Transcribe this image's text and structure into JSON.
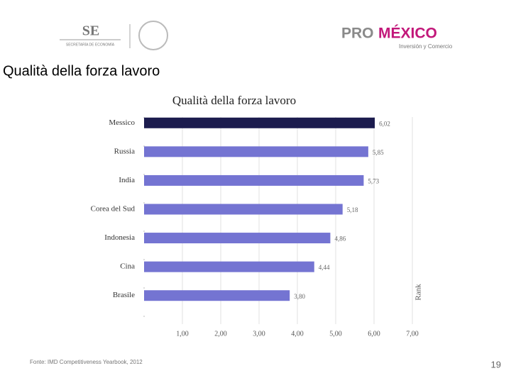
{
  "header": {
    "se_logo": "SE",
    "se_subtitle": "SECRETARÍA DE ECONOMÍA",
    "promexico_pro": "PRO",
    "promexico_mexico": "MÉXICO",
    "promexico_subtitle": "Inversión y Comercio"
  },
  "slide_title": "Qualità della forza lavoro",
  "chart_data": {
    "type": "hbar",
    "title": "Qualità della forza lavoro",
    "categories": [
      "Messico",
      "Russia",
      "India",
      "Corea del Sud",
      "Indonesia",
      "Cina",
      "Brasile"
    ],
    "values": [
      6.02,
      5.85,
      5.73,
      5.18,
      4.86,
      4.44,
      3.8
    ],
    "value_labels": [
      "6,02",
      "5,85",
      "5,73",
      "5,18",
      "4,86",
      "4,44",
      "3,80"
    ],
    "colors": [
      "#1c1c4e",
      "#7474d2",
      "#7474d2",
      "#7474d2",
      "#7474d2",
      "#7474d2",
      "#7474d2"
    ],
    "xlim": [
      0,
      7
    ],
    "xticks": [
      {
        "value": 1,
        "label": "1,00"
      },
      {
        "value": 2,
        "label": "2,00"
      },
      {
        "value": 3,
        "label": "3,00"
      },
      {
        "value": 4,
        "label": "4,00"
      },
      {
        "value": 5,
        "label": "5,00"
      },
      {
        "value": 6,
        "label": "6,00"
      },
      {
        "value": 7,
        "label": "7,00"
      }
    ],
    "y2_label": "Rank",
    "grid": true
  },
  "footer": {
    "source": "Fonte: IMD Competitiveness Yearbook, 2012",
    "page_number": 19
  }
}
